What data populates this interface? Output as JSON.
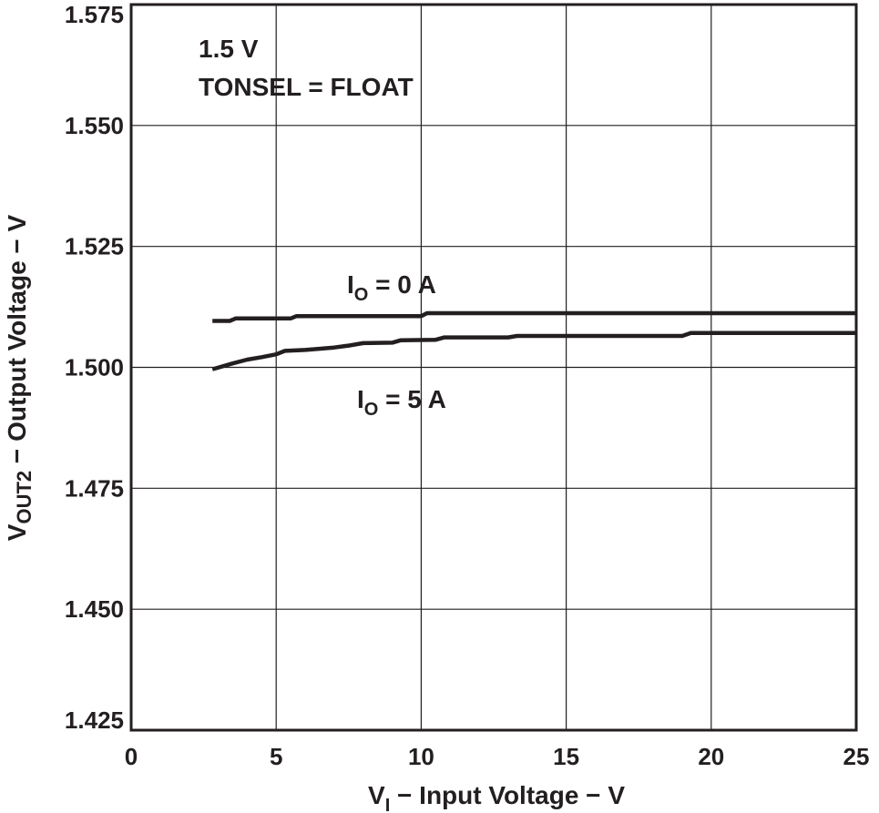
{
  "chart_data": {
    "type": "line",
    "title": "",
    "annotations": [
      "1.5 V",
      "TONSEL = FLOAT"
    ],
    "xlabel": {
      "main": "V",
      "sub": "I",
      "rest": " − Input Voltage − V"
    },
    "ylabel": {
      "main": "V",
      "sub": "OUT2",
      "rest": " − Output Voltage − V"
    },
    "xlim": [
      0,
      25
    ],
    "ylim": [
      1.425,
      1.575
    ],
    "x_ticks": [
      "0",
      "5",
      "10",
      "15",
      "20",
      "25"
    ],
    "y_ticks": [
      "1.425",
      "1.450",
      "1.475",
      "1.500",
      "1.525",
      "1.550",
      "1.575"
    ],
    "grid": true,
    "series": [
      {
        "label_main": "I",
        "label_sub": "O",
        "label_rest": " = 0 A",
        "x": [
          2.8,
          3.4,
          3.6,
          5.5,
          5.7,
          10.0,
          10.2,
          25.0
        ],
        "y": [
          1.5096,
          1.5096,
          1.5101,
          1.5101,
          1.5106,
          1.5106,
          1.5112,
          1.5112
        ]
      },
      {
        "label_main": "I",
        "label_sub": "O",
        "label_rest": " = 5 A",
        "x": [
          2.8,
          3.5,
          4.0,
          4.5,
          5.0,
          5.3,
          6.0,
          7.0,
          7.5,
          8.0,
          9.0,
          9.3,
          10.5,
          10.8,
          13.0,
          13.3,
          19.0,
          19.3,
          25.0
        ],
        "y": [
          1.4996,
          1.5008,
          1.5016,
          1.5021,
          1.5027,
          1.5034,
          1.5036,
          1.5041,
          1.5045,
          1.505,
          1.5051,
          1.5056,
          1.5057,
          1.5062,
          1.5062,
          1.5065,
          1.5065,
          1.5071,
          1.5071
        ]
      }
    ]
  }
}
